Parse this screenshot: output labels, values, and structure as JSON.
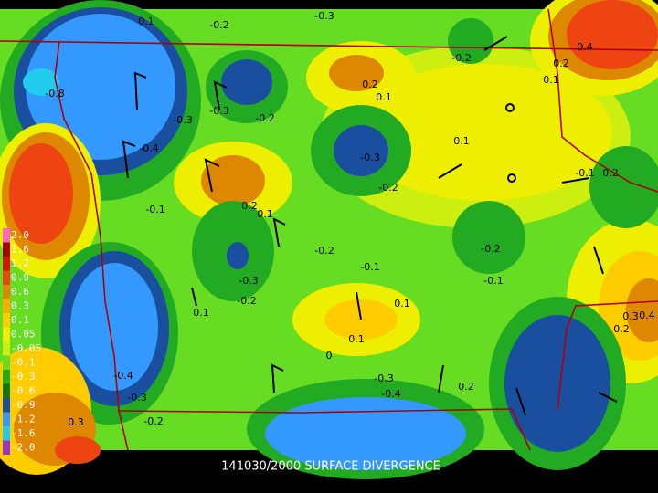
{
  "title": "141030/2000 SURFACE DIVERGENCE",
  "legend": [
    {
      "label": "2.0",
      "color": "#ff66cc"
    },
    {
      "label": "1.6",
      "color": "#aa0000"
    },
    {
      "label": "1.2",
      "color": "#dd1100"
    },
    {
      "label": "0.9",
      "color": "#ee4411"
    },
    {
      "label": "0.6",
      "color": "#dd8800"
    },
    {
      "label": "0.3",
      "color": "#ffaa00"
    },
    {
      "label": "0.1",
      "color": "#ffcc00"
    },
    {
      "label": "0.05",
      "color": "#eeee00"
    },
    {
      "label": "-0.05",
      "color": "#ccee11"
    },
    {
      "label": "-0.1",
      "color": "#66dd22"
    },
    {
      "label": "-0.3",
      "color": "#22aa22"
    },
    {
      "label": "-0.6",
      "color": "#117711"
    },
    {
      "label": "-0.9",
      "color": "#1a4fa0"
    },
    {
      "label": "-1.2",
      "color": "#3399ff"
    },
    {
      "label": "-1.6",
      "color": "#22ccee"
    },
    {
      "label": "-2.0",
      "color": "#9933cc"
    }
  ],
  "contour_labels": [
    "-0.2",
    "0.1",
    "-0.3",
    "-0.2",
    "0.4",
    "0.2",
    "0.1",
    "-0.3",
    "-0.3",
    "-0.2",
    "-0.4",
    "0.2",
    "0.1",
    "0.1",
    "-0.3",
    "-0.2",
    "-0.1",
    "0.2",
    "0.1",
    "-0.2",
    "-0.1",
    "-0.2",
    "-0.1",
    "-0.3",
    "-0.2",
    "0.1",
    "0.1",
    "0.1",
    "0.3",
    "-0.4",
    "-0.3",
    "-0.2",
    "-0.3",
    "-0.4",
    "0.2",
    "0.3",
    "0.2",
    "0.4",
    "-0.1",
    "0.2",
    "-0.8",
    "0"
  ]
}
